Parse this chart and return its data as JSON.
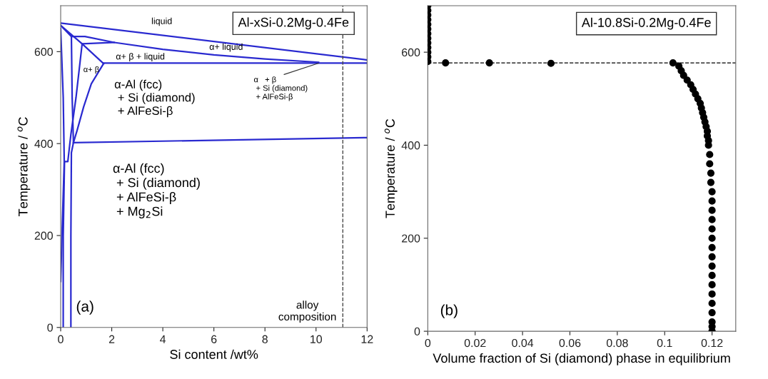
{
  "chart_data": [
    {
      "type": "line",
      "title": "Al-xSi-0.2Mg-0.4Fe",
      "xlabel": "Si content /wt%",
      "ylabel": "Temperature / $^{o}$C",
      "xlim": [
        0,
        12
      ],
      "xticks": [
        0,
        2,
        4,
        6,
        8,
        10,
        12
      ],
      "ylim": [
        0,
        700
      ],
      "yticks": [
        0,
        200,
        400,
        600
      ],
      "grid": false,
      "legend": false,
      "marker": "none",
      "line_style": "solid",
      "series": [
        {
          "color": "#2a2ad0",
          "x": [
            0,
            12
          ],
          "values": [
            662,
            582
          ]
        },
        {
          "color": "#2a2ad0",
          "x": [
            0,
            0.42,
            0.95,
            2.1,
            4,
            6,
            8,
            10.1
          ],
          "values": [
            657,
            633,
            633,
            620,
            605,
            593,
            584,
            577
          ]
        },
        {
          "color": "#2a2ad0",
          "x": [
            0,
            0.84,
            2.1
          ],
          "values": [
            657,
            617,
            620
          ]
        },
        {
          "color": "#2a2ad0",
          "x": [
            0.84,
            1.68
          ],
          "values": [
            617,
            574
          ]
        },
        {
          "color": "#2a2ad0",
          "x": [
            1.68,
            12
          ],
          "values": [
            575,
            575
          ]
        },
        {
          "color": "#2a2ad0",
          "x": [
            1.68,
            1.2,
            0.9,
            0.65,
            0.5
          ],
          "values": [
            574,
            530,
            480,
            430,
            402
          ]
        },
        {
          "color": "#2a2ad0",
          "x": [
            0.5,
            12
          ],
          "values": [
            402,
            413
          ]
        },
        {
          "color": "#2a2ad0",
          "x": [
            0.42,
            0.45,
            0.5,
            0.42,
            0.4,
            0.4
          ],
          "values": [
            633,
            500,
            402,
            380,
            200,
            0
          ]
        },
        {
          "color": "#2a2ad0",
          "x": [
            0.84,
            0.6,
            0.4,
            0.28,
            0.15,
            0.1,
            0.1
          ],
          "values": [
            617,
            500,
            420,
            361,
            361,
            200,
            0
          ]
        },
        {
          "color": "#2a2ad0",
          "x": [
            0,
            0.1,
            0.14,
            0.05,
            0
          ],
          "values": [
            650,
            500,
            361,
            200,
            100
          ]
        }
      ],
      "ref_lines": [
        {
          "axis": "x",
          "value": 11.05,
          "label": "alloy\ncomposition",
          "color": "#444444",
          "line_style": "dashed"
        }
      ],
      "annotations": [
        "liquid",
        "α+ liquid",
        "α+ β + liquid",
        "α+ β",
        "α-Al (fcc)\n + Si (diamond)\n + AlFeSi-β",
        "α-Al (fcc)\n + Si (diamond)\n + AlFeSi-β\n + Mg$_{2}$Si",
        {
          "text": "α   + β\n + Si (diamond)\n + AlFeSi-β",
          "x": 10.1,
          "y": 575
        },
        "(a)"
      ]
    },
    {
      "type": "scatter",
      "title": "Al-10.8Si-0.2Mg-0.4Fe",
      "xlabel": "Volume fraction of Si (diamond) phase in equilibrium",
      "ylabel": "Temperature / $^{o}$C",
      "xlim": [
        0,
        0.13
      ],
      "xticks": [
        0,
        0.02,
        0.04,
        0.06,
        0.08,
        0.1,
        0.12
      ],
      "ylim": [
        0,
        700
      ],
      "yticks": [
        0,
        200,
        400,
        600
      ],
      "grid": false,
      "legend": false,
      "marker": "circle",
      "series": [
        {
          "color": "#000000",
          "x": [
            0,
            0,
            0,
            0,
            0,
            0,
            0,
            0,
            0,
            0,
            0,
            0,
            0,
            0.0075,
            0.026,
            0.052
          ],
          "values": [
            580,
            590,
            600,
            610,
            620,
            630,
            640,
            650,
            660,
            670,
            680,
            690,
            700,
            577,
            577,
            576
          ]
        },
        {
          "color": "#000000",
          "x": [
            0.1035,
            0.106,
            0.107,
            0.108,
            0.1095,
            0.111,
            0.112,
            0.113,
            0.114,
            0.115,
            0.1155,
            0.116,
            0.1165,
            0.117,
            0.1175,
            0.118,
            0.118,
            0.1185,
            0.1185,
            0.119,
            0.119,
            0.1195,
            0.1195,
            0.12,
            0.12,
            0.12,
            0.12,
            0.12,
            0.12,
            0.12,
            0.12,
            0.12,
            0.12,
            0.12,
            0.12,
            0.12,
            0.12,
            0.12,
            0.12,
            0.12
          ],
          "values": [
            577,
            570,
            560,
            550,
            540,
            530,
            520,
            510,
            500,
            490,
            480,
            470,
            460,
            450,
            440,
            430,
            420,
            410,
            400,
            380,
            360,
            340,
            320,
            300,
            280,
            260,
            240,
            220,
            200,
            180,
            160,
            140,
            120,
            100,
            80,
            60,
            40,
            20,
            10,
            0
          ]
        }
      ],
      "ref_lines": [
        {
          "axis": "y",
          "value": 577,
          "color": "#000000",
          "line_style": "dashed"
        }
      ],
      "annotations": [
        "(b)"
      ]
    }
  ]
}
